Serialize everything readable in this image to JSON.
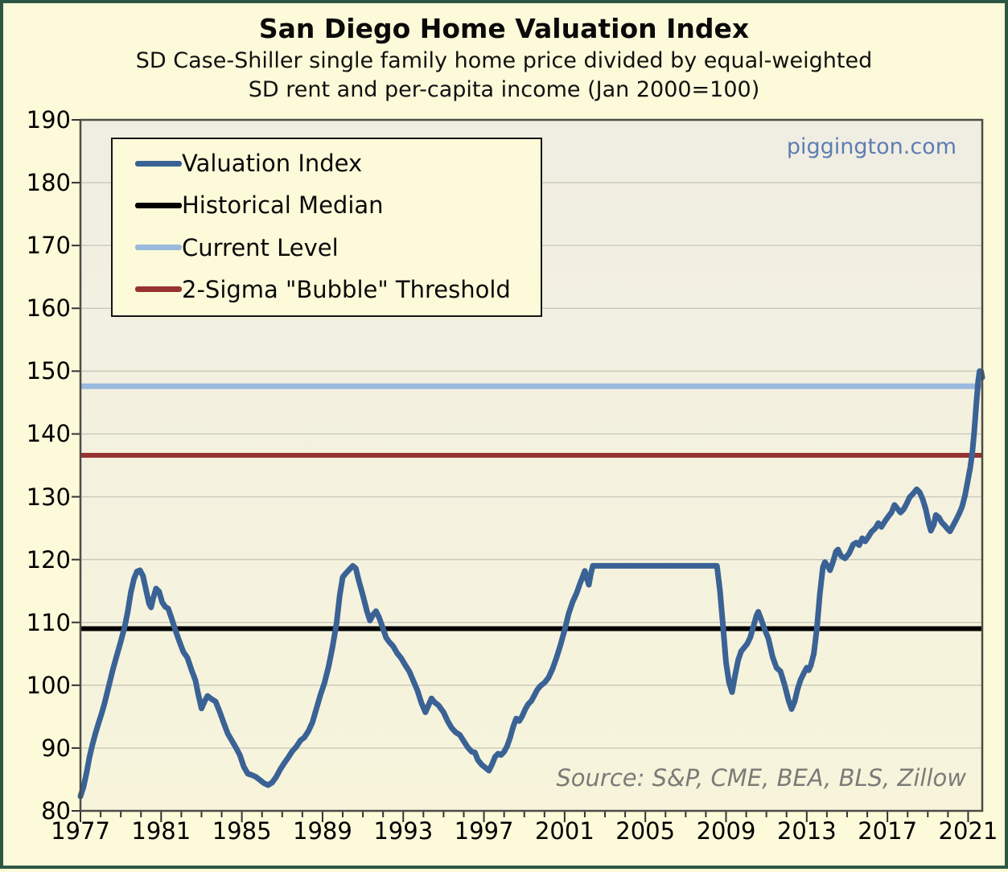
{
  "header": {
    "title": "San Diego Home Valuation Index",
    "subtitle_lines": [
      "SD Case-Shiller single family home price divided by equal-weighted",
      "SD rent and per-capita income (Jan 2000=100)"
    ]
  },
  "watermark": "piggington.com",
  "source_note": "Source: S&P, CME, BEA, BLS, Zillow",
  "legend": {
    "items": [
      {
        "label": "Valuation Index",
        "color_key": "valuation"
      },
      {
        "label": "Historical Median",
        "color_key": "median"
      },
      {
        "label": "Current Level",
        "color_key": "current_level"
      },
      {
        "label": "2-Sigma \"Bubble\" Threshold",
        "color_key": "two_sigma"
      }
    ]
  },
  "colors": {
    "valuation": "#3a6295",
    "median": "#000000",
    "current_level": "#99b9dd",
    "two_sigma": "#973330",
    "grid": "#c9c9bb",
    "plot_border": "#4c4c48",
    "tick": "#333333",
    "plot_bg_top": "#f0eee2",
    "plot_bg_bottom": "#f7f4db",
    "page_bg": "#fcfad9",
    "frame_border": "#2d5744",
    "watermark": "#5e7db4",
    "source": "#7b7b78"
  },
  "chart_data": {
    "type": "line",
    "title": "San Diego Home Valuation Index",
    "xlabel": "",
    "ylabel": "",
    "xlim": [
      1977,
      2021.7
    ],
    "ylim": [
      80,
      190
    ],
    "x_ticks": [
      1977,
      1981,
      1985,
      1989,
      1993,
      1997,
      2001,
      2005,
      2009,
      2013,
      2017,
      2021
    ],
    "x_minor_tick_step": 1,
    "y_ticks": [
      190,
      180,
      170,
      160,
      150,
      140,
      130,
      120,
      110,
      100,
      90,
      80
    ],
    "grid": "horizontal",
    "legend_position": "top-left",
    "reference_lines": [
      {
        "name": "Historical Median",
        "value": 109.0,
        "color_key": "median",
        "width": 6
      },
      {
        "name": "Current Level",
        "value": 147.6,
        "color_key": "current_level",
        "width": 7
      },
      {
        "name": "2-Sigma \"Bubble\" Threshold",
        "value": 136.6,
        "color_key": "two_sigma",
        "width": 6
      }
    ],
    "series": [
      {
        "name": "Valuation Index",
        "color_key": "valuation",
        "width": 7,
        "points": [
          [
            1977.0,
            82.3
          ],
          [
            1977.15,
            83.8
          ],
          [
            1977.3,
            86.0
          ],
          [
            1977.45,
            88.6
          ],
          [
            1977.6,
            90.6
          ],
          [
            1977.75,
            92.4
          ],
          [
            1977.9,
            94.0
          ],
          [
            1978.05,
            95.5
          ],
          [
            1978.2,
            97.2
          ],
          [
            1978.4,
            99.8
          ],
          [
            1978.6,
            102.4
          ],
          [
            1978.8,
            104.7
          ],
          [
            1979.0,
            107.0
          ],
          [
            1979.2,
            109.4
          ],
          [
            1979.35,
            111.8
          ],
          [
            1979.5,
            114.8
          ],
          [
            1979.65,
            116.9
          ],
          [
            1979.8,
            118.1
          ],
          [
            1979.95,
            118.3
          ],
          [
            1980.1,
            117.4
          ],
          [
            1980.25,
            115.2
          ],
          [
            1980.4,
            113.0
          ],
          [
            1980.5,
            112.4
          ],
          [
            1980.6,
            113.8
          ],
          [
            1980.75,
            115.4
          ],
          [
            1980.9,
            114.9
          ],
          [
            1981.05,
            113.2
          ],
          [
            1981.2,
            112.5
          ],
          [
            1981.35,
            112.2
          ],
          [
            1981.5,
            110.8
          ],
          [
            1981.7,
            108.8
          ],
          [
            1981.9,
            107.0
          ],
          [
            1982.1,
            105.3
          ],
          [
            1982.3,
            104.4
          ],
          [
            1982.5,
            102.5
          ],
          [
            1982.7,
            100.8
          ],
          [
            1982.85,
            98.4
          ],
          [
            1983.0,
            96.3
          ],
          [
            1983.15,
            97.4
          ],
          [
            1983.3,
            98.3
          ],
          [
            1983.5,
            97.8
          ],
          [
            1983.7,
            97.4
          ],
          [
            1983.9,
            95.8
          ],
          [
            1984.1,
            94.0
          ],
          [
            1984.3,
            92.3
          ],
          [
            1984.5,
            91.2
          ],
          [
            1984.7,
            90.1
          ],
          [
            1984.9,
            88.9
          ],
          [
            1985.1,
            87.0
          ],
          [
            1985.3,
            85.9
          ],
          [
            1985.5,
            85.7
          ],
          [
            1985.7,
            85.4
          ],
          [
            1985.9,
            84.9
          ],
          [
            1986.1,
            84.4
          ],
          [
            1986.3,
            84.1
          ],
          [
            1986.5,
            84.5
          ],
          [
            1986.7,
            85.4
          ],
          [
            1986.9,
            86.6
          ],
          [
            1987.1,
            87.6
          ],
          [
            1987.3,
            88.5
          ],
          [
            1987.5,
            89.5
          ],
          [
            1987.7,
            90.2
          ],
          [
            1987.9,
            91.2
          ],
          [
            1988.1,
            91.7
          ],
          [
            1988.3,
            92.7
          ],
          [
            1988.5,
            94.1
          ],
          [
            1988.7,
            96.3
          ],
          [
            1988.9,
            98.5
          ],
          [
            1989.1,
            100.4
          ],
          [
            1989.3,
            103.0
          ],
          [
            1989.5,
            106.2
          ],
          [
            1989.7,
            110.0
          ],
          [
            1989.85,
            114.3
          ],
          [
            1990.0,
            117.2
          ],
          [
            1990.15,
            117.8
          ],
          [
            1990.35,
            118.5
          ],
          [
            1990.5,
            119.0
          ],
          [
            1990.65,
            118.6
          ],
          [
            1990.8,
            116.6
          ],
          [
            1991.0,
            114.3
          ],
          [
            1991.2,
            111.8
          ],
          [
            1991.35,
            110.3
          ],
          [
            1991.5,
            111.2
          ],
          [
            1991.65,
            111.8
          ],
          [
            1991.8,
            110.8
          ],
          [
            1992.0,
            109.0
          ],
          [
            1992.15,
            107.6
          ],
          [
            1992.3,
            106.9
          ],
          [
            1992.5,
            106.2
          ],
          [
            1992.7,
            105.1
          ],
          [
            1992.9,
            104.3
          ],
          [
            1993.1,
            103.2
          ],
          [
            1993.3,
            102.2
          ],
          [
            1993.5,
            100.7
          ],
          [
            1993.7,
            99.2
          ],
          [
            1993.9,
            97.2
          ],
          [
            1994.1,
            95.7
          ],
          [
            1994.25,
            96.8
          ],
          [
            1994.4,
            97.9
          ],
          [
            1994.55,
            97.3
          ],
          [
            1994.75,
            96.8
          ],
          [
            1995.0,
            95.7
          ],
          [
            1995.2,
            94.3
          ],
          [
            1995.4,
            93.2
          ],
          [
            1995.6,
            92.5
          ],
          [
            1995.8,
            92.1
          ],
          [
            1996.0,
            91.1
          ],
          [
            1996.2,
            90.1
          ],
          [
            1996.4,
            89.4
          ],
          [
            1996.55,
            89.3
          ],
          [
            1996.7,
            88.1
          ],
          [
            1996.9,
            87.3
          ],
          [
            1997.1,
            86.8
          ],
          [
            1997.25,
            86.4
          ],
          [
            1997.4,
            87.4
          ],
          [
            1997.55,
            88.6
          ],
          [
            1997.7,
            89.1
          ],
          [
            1997.85,
            88.9
          ],
          [
            1998.0,
            89.4
          ],
          [
            1998.15,
            90.3
          ],
          [
            1998.3,
            91.7
          ],
          [
            1998.45,
            93.4
          ],
          [
            1998.6,
            94.7
          ],
          [
            1998.75,
            94.3
          ],
          [
            1998.9,
            95.1
          ],
          [
            1999.05,
            96.2
          ],
          [
            1999.2,
            97.0
          ],
          [
            1999.35,
            97.5
          ],
          [
            1999.5,
            98.4
          ],
          [
            1999.65,
            99.3
          ],
          [
            1999.8,
            99.9
          ],
          [
            2000.0,
            100.4
          ],
          [
            2000.2,
            101.2
          ],
          [
            2000.4,
            102.6
          ],
          [
            2000.6,
            104.4
          ],
          [
            2000.8,
            106.5
          ],
          [
            2001.0,
            108.8
          ],
          [
            2001.2,
            111.4
          ],
          [
            2001.4,
            113.3
          ],
          [
            2001.6,
            114.7
          ],
          [
            2001.75,
            116.1
          ],
          [
            2001.9,
            117.3
          ],
          [
            2002.0,
            118.2
          ],
          [
            2002.1,
            117.0
          ],
          [
            2002.2,
            116.0
          ],
          [
            2002.3,
            117.8
          ],
          [
            2002.4,
            119.0
          ],
          [
            2003.0,
            119.0
          ],
          [
            2004.0,
            119.0
          ],
          [
            2005.0,
            119.0
          ],
          [
            2006.0,
            119.0
          ],
          [
            2007.0,
            119.0
          ],
          [
            2008.0,
            119.0
          ],
          [
            2008.55,
            119.0
          ],
          [
            2008.7,
            115.0
          ],
          [
            2008.85,
            109.5
          ],
          [
            2009.0,
            103.6
          ],
          [
            2009.15,
            100.4
          ],
          [
            2009.3,
            98.9
          ],
          [
            2009.45,
            101.6
          ],
          [
            2009.6,
            104.0
          ],
          [
            2009.75,
            105.4
          ],
          [
            2009.9,
            106.0
          ],
          [
            2010.05,
            106.6
          ],
          [
            2010.2,
            107.6
          ],
          [
            2010.35,
            109.3
          ],
          [
            2010.5,
            111.0
          ],
          [
            2010.6,
            111.7
          ],
          [
            2010.75,
            110.4
          ],
          [
            2010.9,
            109.0
          ],
          [
            2011.1,
            107.4
          ],
          [
            2011.3,
            104.6
          ],
          [
            2011.5,
            102.8
          ],
          [
            2011.7,
            102.2
          ],
          [
            2011.9,
            100.1
          ],
          [
            2012.1,
            97.6
          ],
          [
            2012.25,
            96.2
          ],
          [
            2012.4,
            97.4
          ],
          [
            2012.55,
            99.4
          ],
          [
            2012.7,
            100.9
          ],
          [
            2012.85,
            101.9
          ],
          [
            2013.0,
            102.8
          ],
          [
            2013.1,
            102.4
          ],
          [
            2013.2,
            103.1
          ],
          [
            2013.35,
            105.0
          ],
          [
            2013.5,
            109.0
          ],
          [
            2013.65,
            114.5
          ],
          [
            2013.8,
            118.8
          ],
          [
            2013.9,
            119.6
          ],
          [
            2014.05,
            118.9
          ],
          [
            2014.15,
            118.3
          ],
          [
            2014.3,
            119.6
          ],
          [
            2014.45,
            121.3
          ],
          [
            2014.55,
            121.6
          ],
          [
            2014.7,
            120.6
          ],
          [
            2014.9,
            120.2
          ],
          [
            2015.1,
            121.0
          ],
          [
            2015.3,
            122.4
          ],
          [
            2015.45,
            122.7
          ],
          [
            2015.6,
            122.3
          ],
          [
            2015.75,
            123.4
          ],
          [
            2015.9,
            122.9
          ],
          [
            2016.05,
            123.6
          ],
          [
            2016.2,
            124.4
          ],
          [
            2016.4,
            125.0
          ],
          [
            2016.55,
            125.8
          ],
          [
            2016.7,
            125.2
          ],
          [
            2016.9,
            126.2
          ],
          [
            2017.05,
            126.9
          ],
          [
            2017.2,
            127.5
          ],
          [
            2017.35,
            128.7
          ],
          [
            2017.5,
            128.1
          ],
          [
            2017.65,
            127.5
          ],
          [
            2017.8,
            128.0
          ],
          [
            2017.95,
            128.9
          ],
          [
            2018.1,
            129.9
          ],
          [
            2018.3,
            130.6
          ],
          [
            2018.45,
            131.2
          ],
          [
            2018.6,
            130.7
          ],
          [
            2018.75,
            129.6
          ],
          [
            2018.9,
            128.0
          ],
          [
            2019.05,
            125.8
          ],
          [
            2019.15,
            124.6
          ],
          [
            2019.3,
            125.6
          ],
          [
            2019.4,
            127.1
          ],
          [
            2019.55,
            126.7
          ],
          [
            2019.7,
            125.9
          ],
          [
            2019.85,
            125.4
          ],
          [
            2020.0,
            124.8
          ],
          [
            2020.1,
            124.5
          ],
          [
            2020.25,
            125.4
          ],
          [
            2020.4,
            126.3
          ],
          [
            2020.55,
            127.3
          ],
          [
            2020.7,
            128.4
          ],
          [
            2020.85,
            130.3
          ],
          [
            2021.0,
            132.8
          ],
          [
            2021.1,
            134.6
          ],
          [
            2021.2,
            136.9
          ],
          [
            2021.3,
            140.3
          ],
          [
            2021.4,
            144.6
          ],
          [
            2021.5,
            148.5
          ],
          [
            2021.57,
            150.0
          ],
          [
            2021.65,
            149.9
          ],
          [
            2021.7,
            149.0
          ]
        ]
      }
    ]
  }
}
